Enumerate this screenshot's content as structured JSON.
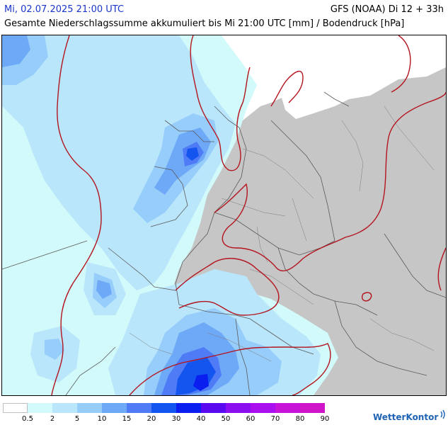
{
  "header": {
    "date": "Mi, 02.07.2025 21:00 UTC",
    "model": "GFS (NOAA) Di 12 + 33h",
    "subtitle": "Gesamte Niederschlagssumme akkumuliert bis Mi 21:00 UTC [mm] / Bodendruck [hPa]"
  },
  "legend": {
    "labels": [
      "0.5",
      "2",
      "5",
      "10",
      "15",
      "20",
      "30",
      "40",
      "50",
      "60",
      "70",
      "80",
      "90"
    ],
    "colors": [
      "#ffffff",
      "#d2fafa",
      "#b9e6fb",
      "#97cdfa",
      "#6ea9f8",
      "#4f7cf6",
      "#1455f0",
      "#0a1ef0",
      "#5a0af0",
      "#8c0ff0",
      "#aa0ff0",
      "#c814d8",
      "#d014c8"
    ]
  },
  "map": {
    "land_color": "#c6c6c6",
    "isobar_color": "#b4141e"
  },
  "brand": {
    "name": "WetterKontor"
  }
}
